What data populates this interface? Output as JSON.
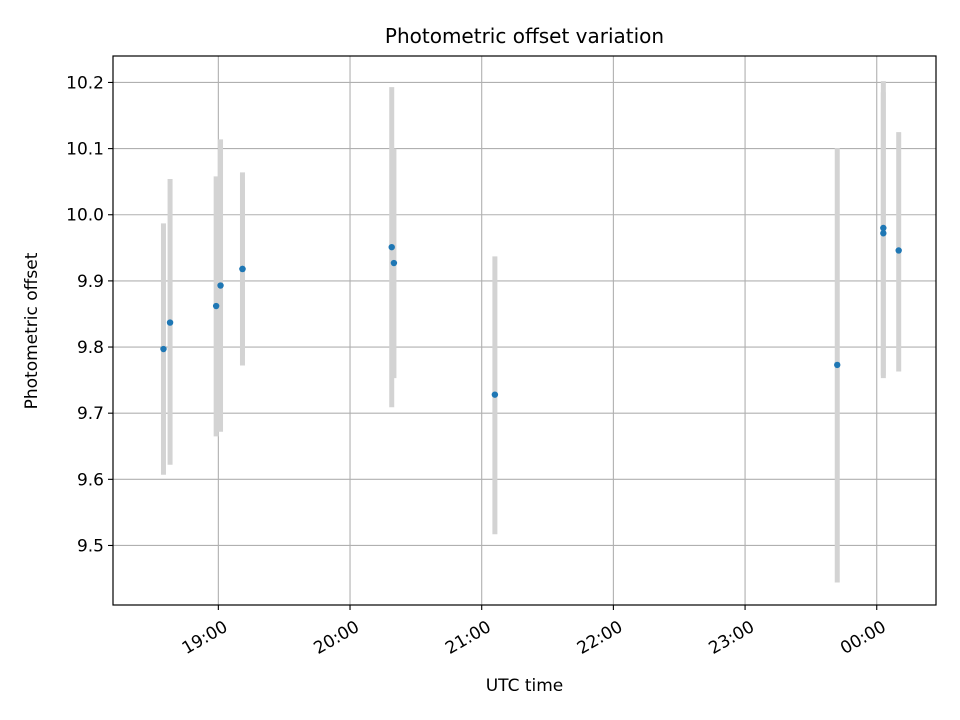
{
  "chart_data": {
    "type": "scatter",
    "title": "Photometric offset variation",
    "xlabel": "UTC time",
    "ylabel": "Photometric offset",
    "x_axis": {
      "kind": "time",
      "range": [
        "18:12",
        "00:27"
      ],
      "ticks": [
        "19:00",
        "20:00",
        "21:00",
        "22:00",
        "23:00",
        "00:00"
      ]
    },
    "y_axis": {
      "range": [
        9.41,
        10.24
      ],
      "ticks": [
        "9.5",
        "9.6",
        "9.7",
        "9.8",
        "9.9",
        "10.0",
        "10.1",
        "10.2"
      ]
    },
    "grid": true,
    "point_color": "#1f77b4",
    "errorbar_color": "#d3d3d3",
    "points": [
      {
        "x": "18:35",
        "y": 9.797,
        "ylow": 9.607,
        "yhigh": 9.987
      },
      {
        "x": "18:38",
        "y": 9.837,
        "ylow": 9.622,
        "yhigh": 10.054
      },
      {
        "x": "18:59",
        "y": 9.862,
        "ylow": 9.665,
        "yhigh": 10.058
      },
      {
        "x": "19:01",
        "y": 9.893,
        "ylow": 9.672,
        "yhigh": 10.114
      },
      {
        "x": "19:11",
        "y": 9.918,
        "ylow": 9.772,
        "yhigh": 10.064
      },
      {
        "x": "19:11",
        "y": 9.918,
        "ylow": 9.787,
        "yhigh": 10.048
      },
      {
        "x": "20:19",
        "y": 9.951,
        "ylow": 9.709,
        "yhigh": 10.193
      },
      {
        "x": "20:20",
        "y": 9.927,
        "ylow": 9.753,
        "yhigh": 10.1
      },
      {
        "x": "21:06",
        "y": 9.728,
        "ylow": 9.517,
        "yhigh": 9.937
      },
      {
        "x": "23:42",
        "y": 9.773,
        "ylow": 9.444,
        "yhigh": 10.101
      },
      {
        "x": "00:03",
        "y": 9.98,
        "ylow": 9.757,
        "yhigh": 10.202
      },
      {
        "x": "00:03",
        "y": 9.972,
        "ylow": 9.753,
        "yhigh": 10.185
      },
      {
        "x": "00:10",
        "y": 9.946,
        "ylow": 9.763,
        "yhigh": 10.125
      }
    ]
  }
}
